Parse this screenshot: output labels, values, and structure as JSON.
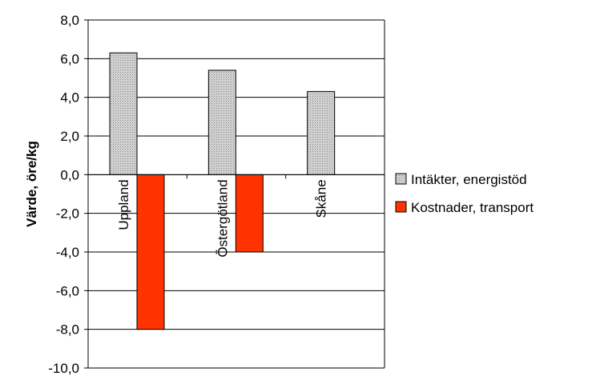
{
  "chart_data": {
    "type": "bar",
    "ylabel": "Värde, öre/kg",
    "ylim": [
      -10,
      8
    ],
    "y_step": 2,
    "y_tick_labels": [
      "8,0",
      "6,0",
      "4,0",
      "2,0",
      "0,0",
      "-2,0",
      "-4,0",
      "-6,0",
      "-8,0",
      "-10,0"
    ],
    "categories": [
      "Uppland",
      "Östergötland",
      "Skåne"
    ],
    "series": [
      {
        "name": "Intäkter, energistöd",
        "values": [
          6.3,
          5.4,
          4.3
        ],
        "color": "#c0c0c0",
        "pattern": "dots"
      },
      {
        "name": "Kostnader, transport",
        "values": [
          -8.0,
          -4.0,
          null
        ],
        "color": "#ff3300"
      }
    ],
    "grid": true,
    "legend_position": "right"
  }
}
